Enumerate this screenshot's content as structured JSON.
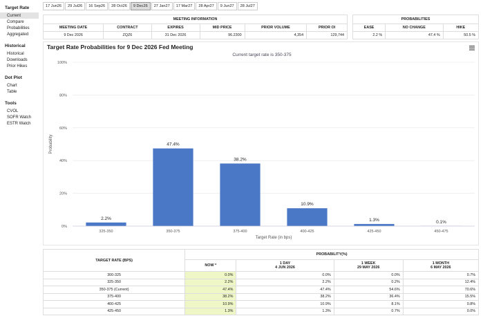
{
  "sidebar": [
    {
      "title": "Target Rate",
      "items": [
        "Current",
        "Compare",
        "Probabilities",
        "Aggregated"
      ]
    },
    {
      "title": "Historical",
      "items": [
        "Historical",
        "Downloads",
        "Prior Hikes"
      ]
    },
    {
      "title": "Dot Plot",
      "items": [
        "Chart",
        "Table"
      ]
    },
    {
      "title": "Tools",
      "items": [
        "CVOL",
        "SOFR Watch",
        "ESTR Watch"
      ]
    }
  ],
  "tabs": [
    "17 Jun26",
    "29 Jul26",
    "16 Sep26",
    "28 Oct26",
    "9 Dec26",
    "27 Jan27",
    "17 Mar27",
    "28 Apr27",
    "9 Jun27",
    "28 Jul27"
  ],
  "meeting_info": {
    "title": "MEETING INFORMATION",
    "headers": [
      "MEETING DATE",
      "CONTRACT",
      "EXPIRES",
      "MID PRICE",
      "PRIOR VOLUME",
      "PRIOR OI"
    ],
    "row": [
      "9 Dec 2026",
      "ZQZ6",
      "31 Dec 2026",
      "96.2300",
      "4,354",
      "129,744"
    ]
  },
  "probabilities": {
    "title": "PROBABILITIES",
    "headers": [
      "EASE",
      "NO CHANGE",
      "HIKE"
    ],
    "row": [
      "2.2 %",
      "47.4 %",
      "50.5 %"
    ]
  },
  "chart_data": {
    "type": "bar",
    "title": "Target Rate Probabilities for 9 Dec 2026 Fed Meeting",
    "subtitle": "Current target rate is 350-375",
    "y_label": "Probability",
    "x_label": "Target Rate (in bps)",
    "categories": [
      "325-350",
      "350-375",
      "375-400",
      "400-425",
      "425-450",
      "450-475"
    ],
    "values": [
      2.2,
      47.4,
      38.2,
      10.9,
      1.3,
      0.1
    ],
    "value_labels": [
      "2.2%",
      "47.4%",
      "38.2%",
      "10.9%",
      "1.3%",
      "0.1%"
    ],
    "color": "#4a77c6",
    "ylim": [
      0,
      100
    ],
    "yticks": [
      {
        "value": 0,
        "label": "0%"
      },
      {
        "value": 20,
        "label": "20%"
      },
      {
        "value": 40,
        "label": "40%"
      },
      {
        "value": 60,
        "label": "60%"
      },
      {
        "value": 80,
        "label": "80%"
      },
      {
        "value": 100,
        "label": "100%"
      }
    ],
    "grid": true
  },
  "history_table": {
    "first_header": "TARGET RATE (BPS)",
    "group_header": "PROBABILITY(%)",
    "columns": [
      {
        "label": "NOW *"
      },
      {
        "label": "1 DAY",
        "date": "4 JUN 2026"
      },
      {
        "label": "1 WEEK",
        "date": "29 MAY 2026"
      },
      {
        "label": "1 MONTH",
        "date": "6 MAY 2026"
      }
    ],
    "rows": [
      [
        "300-325",
        "0.0%",
        "0.0%",
        "0.0%",
        "0.7%"
      ],
      [
        "325-350",
        "2.2%",
        "2.2%",
        "0.2%",
        "12.4%"
      ],
      [
        "350-375 (Current)",
        "47.4%",
        "47.4%",
        "54.6%",
        "70.6%"
      ],
      [
        "375-400",
        "38.2%",
        "38.2%",
        "36.4%",
        "15.5%"
      ],
      [
        "400-425",
        "10.9%",
        "10.9%",
        "8.1%",
        "0.8%"
      ],
      [
        "425-450",
        "1.3%",
        "1.3%",
        "0.7%",
        "0.0%"
      ]
    ]
  }
}
